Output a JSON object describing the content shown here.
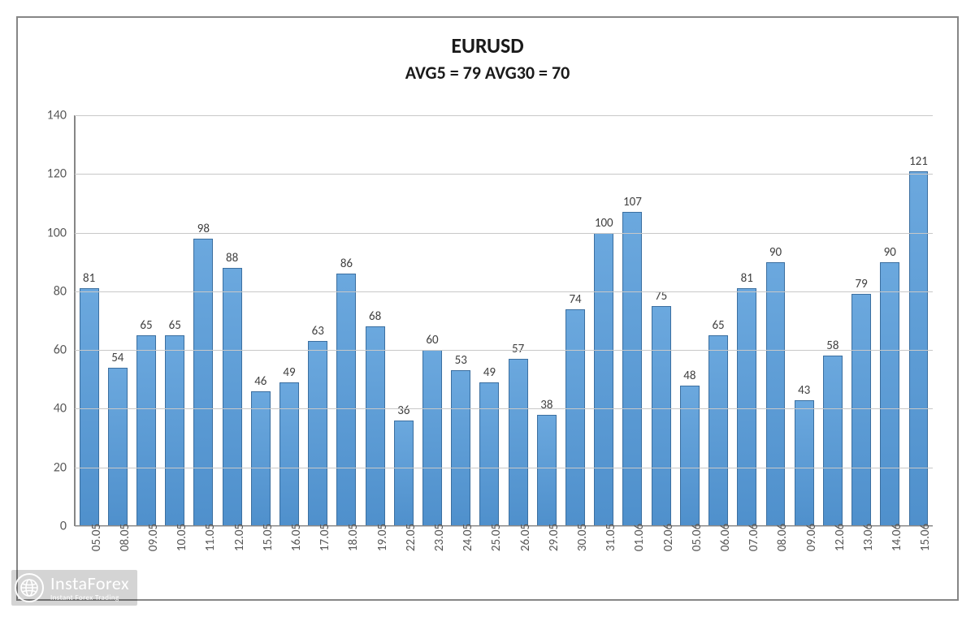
{
  "chart": {
    "type": "bar",
    "title": "EURUSD",
    "subtitle": "AVG5 = 79 AVG30 = 70",
    "title_fontsize": 26,
    "subtitle_fontsize": 22,
    "title_color": "#1a1a1a",
    "categories": [
      "05.05",
      "08.05",
      "09.05",
      "10.05",
      "11.05",
      "12.05",
      "15.05",
      "16.05",
      "17.05",
      "18.05",
      "19.05",
      "22.05",
      "23.05",
      "24.05",
      "25.05",
      "26.05",
      "29.05",
      "30.05",
      "31.05",
      "01.06",
      "02.06",
      "05.06",
      "06.06",
      "07.06",
      "08.06",
      "09.06",
      "12.06",
      "13.06",
      "14.06",
      "15.06"
    ],
    "values": [
      81,
      54,
      65,
      65,
      98,
      88,
      46,
      49,
      63,
      86,
      68,
      36,
      60,
      53,
      49,
      57,
      38,
      74,
      100,
      107,
      75,
      48,
      65,
      81,
      90,
      43,
      58,
      79,
      90,
      121
    ],
    "bar_color": "#5b9bd5",
    "bar_border_color": "#3b6fa0",
    "bar_width": 0.68,
    "ylim": [
      0,
      140
    ],
    "ytick_step": 20,
    "yticks": [
      0,
      20,
      40,
      60,
      80,
      100,
      120,
      140
    ],
    "grid_color": "#c8c8c8",
    "axis_color": "#868686",
    "background_color": "#ffffff",
    "tick_label_fontsize": 16,
    "tick_label_color": "#595959",
    "data_label_fontsize": 15,
    "data_label_color": "#404040",
    "frame_border_color": "#868686"
  },
  "watermark": {
    "brand": "InstaForex",
    "tagline": "Instant Forex Trading",
    "color": "#ffffff"
  }
}
